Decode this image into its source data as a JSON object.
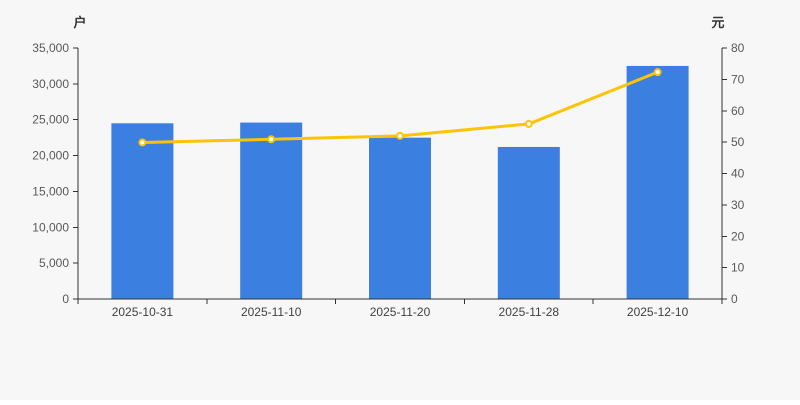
{
  "chart_data": {
    "type": "bar+line",
    "title": "",
    "categories": [
      "2025-10-31",
      "2025-11-10",
      "2025-11-20",
      "2025-11-28",
      "2025-12-10"
    ],
    "series": [
      {
        "type": "bar",
        "axis": "left",
        "unit": "户",
        "values": [
          24500,
          24600,
          22500,
          21200,
          32500
        ],
        "color": "#3b7fe0"
      },
      {
        "type": "line",
        "axis": "right",
        "unit": "元",
        "values": [
          49.9,
          50.9,
          52.0,
          55.8,
          72.3
        ],
        "color": "#fcc408",
        "marker_fill": "#ffffff"
      }
    ],
    "left_axis": {
      "unit": "户",
      "min": 0,
      "max": 35000,
      "step": 5000,
      "tick_labels": [
        "0",
        "5,000",
        "10,000",
        "15,000",
        "20,000",
        "25,000",
        "30,000",
        "35,000"
      ]
    },
    "right_axis": {
      "unit": "元",
      "min": 0,
      "max": 80,
      "step": 10,
      "tick_labels": [
        "0",
        "10",
        "20",
        "30",
        "40",
        "50",
        "60",
        "70",
        "80"
      ]
    },
    "grid": false,
    "legend": false,
    "background": "#f7f7f7",
    "axis_color": "#333333",
    "tick_text_color": "#595959",
    "category_text_color": "#404040"
  }
}
